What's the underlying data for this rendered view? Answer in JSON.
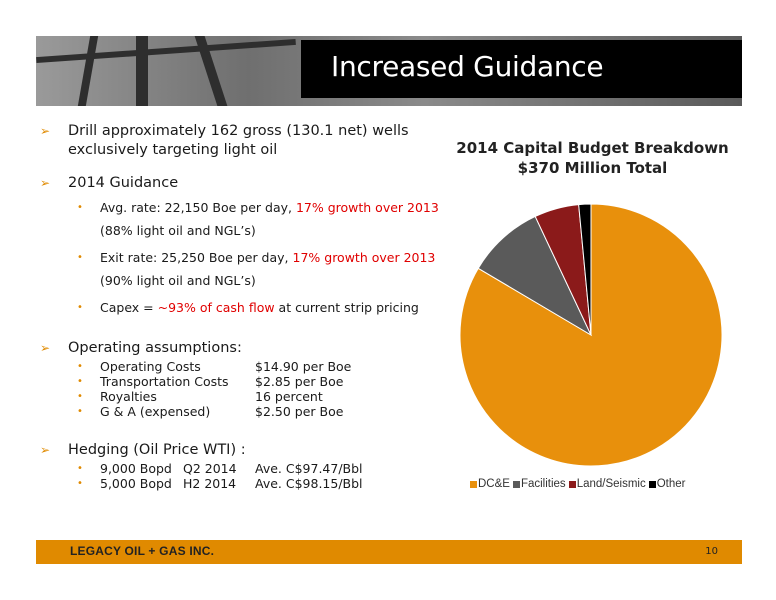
{
  "slide_title": "Increased Guidance",
  "bullets": {
    "drill_line1": "Drill approximately 162 gross (130.1 net) wells",
    "drill_line2": "exclusively targeting light oil",
    "guidance_heading": "2014 Guidance",
    "avg_rate_pre": "Avg. rate: 22,150 Boe per day, ",
    "avg_rate_red": "17% growth over 2013",
    "avg_rate_post": "(88% light oil and NGL’s)",
    "exit_rate_pre": "Exit rate: 25,250 Boe per day, ",
    "exit_rate_red": "17% growth over 2013",
    "exit_rate_post": "(90% light oil and NGL’s)",
    "capex_pre": "Capex = ",
    "capex_red": "~93% of cash flow",
    "capex_post": " at current strip pricing",
    "operating_heading": "Operating assumptions:",
    "operating": [
      {
        "label": "Operating Costs",
        "value": "$14.90 per Boe"
      },
      {
        "label": "Transportation Costs",
        "value": "$2.85 per Boe"
      },
      {
        "label": "Royalties",
        "value": "16 percent"
      },
      {
        "label": "G & A (expensed)",
        "value": "$2.50 per Boe"
      }
    ],
    "hedging_heading": "Hedging (Oil Price WTI) :",
    "hedging": [
      {
        "volume": "9,000 Bopd",
        "period": "Q2 2014",
        "price": "Ave. C$97.47/Bbl"
      },
      {
        "volume": "5,000 Bopd",
        "period": "H2 2014",
        "price": "Ave. C$98.15/Bbl"
      }
    ]
  },
  "chart_data": {
    "type": "pie",
    "title": "2014 Capital Budget Breakdown",
    "subtitle": "$370 Million Total",
    "categories": [
      "DC&E",
      "Facilities",
      "Land/Seismic",
      "Other"
    ],
    "values": [
      83.5,
      9.5,
      5.5,
      1.5
    ],
    "colors": [
      "#e8900c",
      "#5a5a5a",
      "#8b1a1a",
      "#000000"
    ],
    "legend_position": "bottom"
  },
  "footer": {
    "brand": "LEGACY OIL + GAS INC.",
    "page": "10"
  },
  "colors": {
    "accent": "#e08a00",
    "highlight": "#e00000"
  }
}
